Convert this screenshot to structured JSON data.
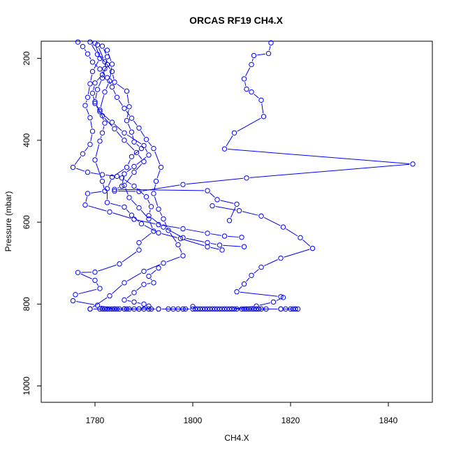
{
  "chart_data": {
    "type": "line",
    "title": "ORCAS RF19 CH4.X",
    "xlabel": "CH4.X",
    "ylabel": "Pressure (mbar)",
    "xlim": [
      1769,
      1849
    ],
    "ylim": [
      1040,
      158
    ],
    "y_reversed": true,
    "grid": false,
    "legend": "none",
    "color": "#0000ff",
    "x_ticks": [
      1780,
      1800,
      1820,
      1840
    ],
    "y_ticks": [
      200,
      400,
      600,
      800,
      1000
    ],
    "x_tick_labels": [
      "1780",
      "1800",
      "1820",
      "1840"
    ],
    "y_tick_labels": [
      "200",
      "400",
      "600",
      "800",
      "1000"
    ],
    "series": [
      {
        "points": [
          [
            1776.5,
            160
          ],
          [
            1777.5,
            171
          ],
          [
            1778.5,
            189
          ],
          [
            1779.5,
            209
          ],
          [
            1781.0,
            226
          ],
          [
            1782.5,
            247
          ],
          [
            1783.5,
            270
          ],
          [
            1784.5,
            295
          ],
          [
            1786.0,
            322
          ],
          [
            1787.5,
            346
          ],
          [
            1789.0,
            370
          ],
          [
            1790.5,
            398
          ],
          [
            1792.0,
            420
          ],
          [
            1793.5,
            466
          ],
          [
            1792.5,
            500
          ],
          [
            1792.0,
            530
          ],
          [
            1793.0,
            568
          ],
          [
            1794.0,
            592
          ],
          [
            1795.0,
            620
          ],
          [
            1797.0,
            655
          ],
          [
            1798.0,
            682
          ],
          [
            1794.0,
            700
          ],
          [
            1790.0,
            720
          ],
          [
            1786.0,
            748
          ],
          [
            1783.0,
            780
          ],
          [
            1779.0,
            812
          ],
          [
            1786.0,
            812
          ],
          [
            1793.0,
            812
          ],
          [
            1800.0,
            812
          ]
        ]
      },
      {
        "points": [
          [
            1779.0,
            160
          ],
          [
            1780.5,
            190
          ],
          [
            1782.5,
            215
          ],
          [
            1781.5,
            240
          ],
          [
            1780.0,
            260
          ],
          [
            1779.5,
            285
          ],
          [
            1780.0,
            310
          ],
          [
            1781.5,
            340
          ],
          [
            1784.0,
            372
          ],
          [
            1786.0,
            400
          ],
          [
            1788.5,
            430
          ],
          [
            1790.0,
            452
          ],
          [
            1788.0,
            478
          ],
          [
            1786.0,
            510
          ],
          [
            1787.0,
            540
          ],
          [
            1789.0,
            565
          ],
          [
            1791.0,
            592
          ],
          [
            1792.0,
            622
          ],
          [
            1789.0,
            650
          ],
          [
            1789.0,
            668
          ],
          [
            1785.0,
            702
          ],
          [
            1780.0,
            722
          ],
          [
            1776.5,
            723
          ],
          [
            1780.0,
            742
          ],
          [
            1781.0,
            762
          ],
          [
            1776.0,
            777
          ],
          [
            1775.5,
            792
          ],
          [
            1780.5,
            803
          ],
          [
            1784.0,
            812
          ]
        ]
      },
      {
        "points": [
          [
            1780.0,
            163
          ],
          [
            1781.0,
            200
          ],
          [
            1779.5,
            232
          ],
          [
            1779.0,
            262
          ],
          [
            1778.5,
            295
          ],
          [
            1778.0,
            315
          ],
          [
            1779.0,
            345
          ],
          [
            1779.5,
            378
          ],
          [
            1779.0,
            410
          ],
          [
            1777.5,
            433
          ],
          [
            1775.5,
            466
          ],
          [
            1778.5,
            478
          ],
          [
            1781.5,
            484
          ],
          [
            1784.5,
            488
          ],
          [
            1785.5,
            492
          ],
          [
            1788.0,
            512
          ],
          [
            1790.5,
            538
          ],
          [
            1791.5,
            562
          ],
          [
            1791.0,
            584
          ],
          [
            1794.0,
            612
          ],
          [
            1798.0,
            638
          ],
          [
            1803.0,
            650
          ],
          [
            1805.5,
            656
          ],
          [
            1810.5,
            660
          ]
        ]
      },
      {
        "points": [
          [
            1782.5,
            180
          ],
          [
            1783.5,
            214
          ],
          [
            1783.0,
            255
          ],
          [
            1782.0,
            282
          ],
          [
            1781.0,
            326
          ],
          [
            1782.0,
            358
          ],
          [
            1781.5,
            382
          ],
          [
            1781.0,
            402
          ],
          [
            1780.0,
            448
          ],
          [
            1781.5,
            500
          ],
          [
            1782.0,
            524
          ],
          [
            1778.5,
            530
          ],
          [
            1778.0,
            558
          ],
          [
            1783.0,
            575
          ],
          [
            1788.0,
            593
          ],
          [
            1793.0,
            606
          ],
          [
            1798.0,
            616
          ],
          [
            1803.0,
            627
          ],
          [
            1806.5,
            634
          ],
          [
            1810.0,
            637
          ]
        ]
      },
      {
        "points": [
          [
            1780.5,
            167
          ],
          [
            1782.0,
            208
          ],
          [
            1783.5,
            232
          ],
          [
            1784.0,
            258
          ],
          [
            1786.5,
            280
          ],
          [
            1787.0,
            318
          ],
          [
            1786.5,
            352
          ],
          [
            1787.5,
            380
          ],
          [
            1788.0,
            404
          ],
          [
            1789.5,
            420
          ],
          [
            1787.5,
            440
          ],
          [
            1786.5,
            466
          ],
          [
            1783.5,
            490
          ],
          [
            1782.5,
            518
          ],
          [
            1782.5,
            552
          ],
          [
            1786.0,
            563
          ],
          [
            1787.5,
            583
          ],
          [
            1789.5,
            604
          ],
          [
            1793.0,
            626
          ],
          [
            1797.5,
            640
          ],
          [
            1803.0,
            660
          ],
          [
            1806.0,
            668
          ]
        ]
      },
      {
        "points": [
          [
            1781.5,
            170
          ],
          [
            1782.5,
            196
          ],
          [
            1782.0,
            225
          ],
          [
            1781.5,
            248
          ],
          [
            1780.5,
            276
          ],
          [
            1780.0,
            306
          ],
          [
            1781.0,
            330
          ],
          [
            1783.5,
            356
          ],
          [
            1786.0,
            382
          ],
          [
            1790.0,
            413
          ],
          [
            1791.0,
            436
          ],
          [
            1788.0,
            464
          ],
          [
            1786.0,
            482
          ],
          [
            1785.5,
            512
          ],
          [
            1784.0,
            520
          ],
          [
            1803.0,
            523
          ],
          [
            1805.0,
            545
          ],
          [
            1809.0,
            556
          ],
          [
            1807.5,
            596
          ]
        ]
      },
      {
        "points": [
          [
            1816.0,
            162
          ],
          [
            1815.5,
            188
          ],
          [
            1812.5,
            193
          ],
          [
            1812.0,
            215
          ],
          [
            1810.5,
            250
          ],
          [
            1811.0,
            275
          ],
          [
            1812.0,
            282
          ],
          [
            1814.0,
            302
          ],
          [
            1814.5,
            342
          ],
          [
            1808.5,
            382
          ],
          [
            1806.5,
            421
          ],
          [
            1845.0,
            458
          ],
          [
            1811.0,
            492
          ],
          [
            1798.0,
            508
          ],
          [
            1789.0,
            525
          ],
          [
            1784.0,
            524
          ]
        ]
      },
      {
        "points": [
          [
            1804.0,
            560
          ],
          [
            1809.5,
            572
          ],
          [
            1814.0,
            585
          ],
          [
            1818.5,
            612
          ],
          [
            1822.0,
            638
          ],
          [
            1824.5,
            664
          ],
          [
            1818.0,
            688
          ],
          [
            1814.0,
            710
          ],
          [
            1812.0,
            730
          ],
          [
            1810.5,
            751
          ],
          [
            1809.0,
            770
          ],
          [
            1818.0,
            782
          ],
          [
            1818.5,
            784
          ],
          [
            1816.5,
            795
          ],
          [
            1813.0,
            805
          ],
          [
            1808.0,
            812
          ],
          [
            1813.0,
            812
          ],
          [
            1818.0,
            812
          ],
          [
            1821.0,
            812
          ]
        ]
      },
      {
        "points": [
          [
            1793.0,
            712
          ],
          [
            1791.0,
            732
          ],
          [
            1792.0,
            748
          ],
          [
            1790.0,
            752
          ],
          [
            1788.0,
            772
          ],
          [
            1786.0,
            790
          ],
          [
            1788.0,
            795
          ],
          [
            1790.0,
            800
          ],
          [
            1791.0,
            805
          ],
          [
            1789.0,
            812
          ],
          [
            1782.0,
            812
          ]
        ]
      }
    ],
    "cluster_points": [
      [
        1779.0,
        812
      ],
      [
        1781.0,
        812
      ],
      [
        1781.5,
        812
      ],
      [
        1782.0,
        812
      ],
      [
        1782.5,
        812
      ],
      [
        1783.0,
        812
      ],
      [
        1783.5,
        812
      ],
      [
        1784.0,
        812
      ],
      [
        1784.5,
        812
      ],
      [
        1785.0,
        812
      ],
      [
        1786.0,
        812
      ],
      [
        1786.5,
        812
      ],
      [
        1787.0,
        812
      ],
      [
        1788.0,
        812
      ],
      [
        1789.0,
        812
      ],
      [
        1790.0,
        812
      ],
      [
        1791.0,
        812
      ],
      [
        1791.5,
        812
      ],
      [
        1793.0,
        812
      ],
      [
        1795.0,
        812
      ],
      [
        1796.0,
        812
      ],
      [
        1797.0,
        812
      ],
      [
        1798.0,
        812
      ],
      [
        1798.5,
        812
      ],
      [
        1800.0,
        806
      ],
      [
        1800.5,
        812
      ],
      [
        1801.0,
        812
      ],
      [
        1801.5,
        812
      ],
      [
        1802.0,
        812
      ],
      [
        1802.5,
        812
      ],
      [
        1803.0,
        812
      ],
      [
        1803.5,
        812
      ],
      [
        1804.0,
        812
      ],
      [
        1804.5,
        812
      ],
      [
        1805.0,
        812
      ],
      [
        1805.5,
        812
      ],
      [
        1806.0,
        812
      ],
      [
        1806.5,
        812
      ],
      [
        1807.0,
        812
      ],
      [
        1807.5,
        812
      ],
      [
        1808.0,
        812
      ],
      [
        1808.5,
        812
      ],
      [
        1809.0,
        812
      ],
      [
        1810.0,
        812
      ],
      [
        1810.5,
        812
      ],
      [
        1811.0,
        812
      ],
      [
        1811.5,
        812
      ],
      [
        1812.0,
        812
      ],
      [
        1812.5,
        812
      ],
      [
        1813.0,
        812
      ],
      [
        1813.5,
        812
      ],
      [
        1814.0,
        812
      ],
      [
        1815.0,
        812
      ],
      [
        1818.0,
        812
      ],
      [
        1819.0,
        812
      ],
      [
        1820.0,
        812
      ],
      [
        1820.5,
        812
      ],
      [
        1821.0,
        812
      ],
      [
        1821.5,
        812
      ]
    ]
  }
}
